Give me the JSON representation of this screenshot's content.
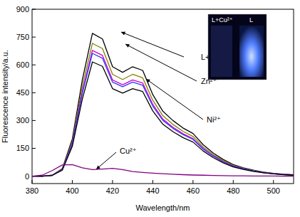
{
  "chart_data": {
    "type": "line",
    "x_label": "Wavelength/nm",
    "y_label": "Fluorescence intensity/a.u.",
    "x": [
      380,
      385,
      390,
      395,
      400,
      405,
      410,
      415,
      420,
      425,
      430,
      435,
      440,
      445,
      450,
      455,
      460,
      465,
      470,
      475,
      480,
      485,
      490,
      495,
      500,
      505,
      510
    ],
    "xlim": [
      380,
      510
    ],
    "xticks": [
      380,
      400,
      420,
      440,
      460,
      480,
      500
    ],
    "ylim": [
      -40,
      900
    ],
    "yticks": [
      0,
      150,
      300,
      450,
      600,
      750,
      900
    ],
    "grid": false,
    "series": [
      {
        "name": "L+other ions",
        "color": "#000000",
        "values": [
          0,
          0,
          5,
          40,
          200,
          520,
          770,
          740,
          590,
          560,
          590,
          570,
          440,
          350,
          300,
          260,
          230,
          170,
          125,
          90,
          62,
          45,
          32,
          22,
          15,
          10,
          7
        ]
      },
      {
        "name": "Zn²⁺",
        "color": "#808000",
        "values": [
          0,
          0,
          5,
          37,
          186,
          484,
          716,
          688,
          549,
          521,
          549,
          530,
          409,
          326,
          279,
          242,
          214,
          158,
          116,
          84,
          58,
          42,
          30,
          20,
          14,
          9,
          7
        ]
      },
      {
        "color": "#cc00cc",
        "values": [
          0,
          0,
          4,
          35,
          176,
          458,
          678,
          651,
          519,
          493,
          519,
          502,
          387,
          308,
          264,
          229,
          202,
          150,
          110,
          79,
          55,
          40,
          28,
          19,
          13,
          9,
          6
        ]
      },
      {
        "color": "#3333ff",
        "values": [
          0,
          0,
          4,
          34,
          172,
          447,
          662,
          636,
          507,
          482,
          507,
          490,
          378,
          301,
          258,
          224,
          198,
          146,
          108,
          77,
          53,
          39,
          28,
          19,
          13,
          9,
          6
        ]
      },
      {
        "name": "Ni²⁺",
        "color": "#000000",
        "values": [
          0,
          0,
          4,
          32,
          160,
          416,
          616,
          592,
          472,
          448,
          472,
          456,
          352,
          280,
          240,
          208,
          184,
          136,
          100,
          72,
          50,
          36,
          26,
          18,
          12,
          8,
          6
        ]
      },
      {
        "name": "Cu²⁺",
        "color": "#800080",
        "values": [
          0,
          5,
          30,
          60,
          62,
          45,
          35,
          38,
          42,
          35,
          25,
          20,
          16,
          13,
          10,
          8,
          6,
          5,
          4,
          3,
          2,
          2,
          1,
          1,
          1,
          0,
          0
        ]
      }
    ],
    "inset": {
      "labels": [
        "L+Cu²⁺",
        "L"
      ]
    }
  }
}
